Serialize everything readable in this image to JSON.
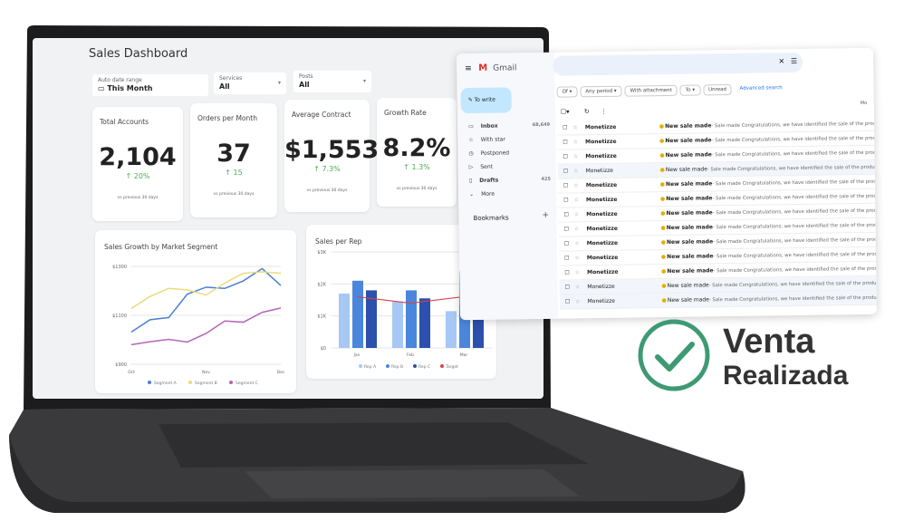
{
  "dashboard": {
    "title": "Sales Dashboard",
    "filters": [
      {
        "label": "Auto date range",
        "value": "This Month",
        "icon": "calendar-icon"
      },
      {
        "label": "Services",
        "value": "All"
      },
      {
        "label": "Posts",
        "value": "All"
      }
    ],
    "kpis": [
      {
        "label": "Total Accounts",
        "value": "2,104",
        "delta": "↑ 20%",
        "sub": "vs previous 30 days"
      },
      {
        "label": "Orders per Month",
        "value": "37",
        "delta": "↑ 15",
        "sub": "vs previous 30 days"
      },
      {
        "label": "Average Contract",
        "value": "$1,553",
        "delta": "↑ 7.3%",
        "sub": "vs previous 30 days"
      },
      {
        "label": "Growth Rate",
        "value": "8.2%",
        "delta": "↑ 1.3%",
        "sub": "vs previous 30 days"
      }
    ]
  },
  "chart_data": [
    {
      "type": "line",
      "title": "Sales Growth by Market Segment",
      "x_ticks": [
        "Oct",
        "Nov",
        "Dec"
      ],
      "y_ticks": [
        "$900",
        "$1100",
        "$1300"
      ],
      "ylim": [
        900,
        1300
      ],
      "grid": true,
      "legend": "bottom",
      "series": [
        {
          "name": "Segment A",
          "color": "#4a7fd6",
          "values": [
            1032,
            1082,
            1091,
            1187,
            1215,
            1210,
            1241,
            1291,
            1222
          ]
        },
        {
          "name": "Segment B",
          "color": "#e8dd7a",
          "values": [
            1128,
            1177,
            1210,
            1204,
            1183,
            1232,
            1272,
            1278,
            1272
          ]
        },
        {
          "name": "Segment C",
          "color": "#b565b8",
          "values": [
            980,
            992,
            1002,
            991,
            1026,
            1077,
            1072,
            1112,
            1130
          ]
        }
      ]
    },
    {
      "type": "bar",
      "title": "Sales per Rep",
      "categories": [
        "Jan",
        "Feb",
        "Mar"
      ],
      "y_ticks": [
        "$0",
        "$1K",
        "$2K",
        "$3K"
      ],
      "ylim": [
        0,
        3000
      ],
      "grid": true,
      "legend": "bottom",
      "series": [
        {
          "name": "Rep A",
          "color": "#a7c8f5",
          "values": [
            1700,
            1450,
            1150
          ]
        },
        {
          "name": "Rep B",
          "color": "#4a86dc",
          "values": [
            2100,
            1800,
            2400
          ]
        },
        {
          "name": "Rep C",
          "color": "#2d4fae",
          "values": [
            1800,
            1550,
            2100
          ]
        },
        {
          "name": "Target",
          "color": "#d0454c",
          "type": "line",
          "values": [
            1600,
            1400,
            1600
          ]
        }
      ]
    }
  ],
  "gmail": {
    "app_name": "Gmail",
    "compose": "To write",
    "nav": [
      {
        "label": "Inbox",
        "count": "68,649",
        "icon": "inbox-icon"
      },
      {
        "label": "With star",
        "icon": "star-icon"
      },
      {
        "label": "Postponed",
        "icon": "clock-icon"
      },
      {
        "label": "Sent",
        "icon": "send-icon"
      },
      {
        "label": "Drafts",
        "count": "425",
        "icon": "draft-icon"
      },
      {
        "label": "More",
        "icon": "chevron-down-icon"
      }
    ],
    "bookmarks": "Bookmarks",
    "chips": [
      "Of ▾",
      "Any period ▾",
      "With attachment",
      "To ▾",
      "Unread"
    ],
    "advanced": "Advanced search",
    "more_label": "Mo",
    "emails": [
      {
        "sender": "Monetizze",
        "subject": "New sale made",
        "snippet": " - Sale made Congratulations, we have identified the sale of the product [PLR VIDE",
        "unread": true
      },
      {
        "sender": "Monetizze",
        "subject": "New sale made",
        "snippet": " - Sale made Congratulations, we have identified the sale of the product [PLR VIDE",
        "unread": true
      },
      {
        "sender": "Monetizze",
        "subject": "New sale made",
        "snippet": " - Sale made Congratulations, we have identified the sale of the product [PLR VIDE",
        "unread": true
      },
      {
        "sender": "Monetizze",
        "subject": "New sale made",
        "snippet": " - Sale made Congratulations, we have identified the sale of the product [PLR VIDE",
        "unread": false
      },
      {
        "sender": "Monetizze",
        "subject": "New sale made",
        "snippet": " - Sale made Congratulations, we have identified the sale of the product [PLR VIDE",
        "unread": true
      },
      {
        "sender": "Monetizze",
        "subject": "New sale made",
        "snippet": " - Sale made Congratulations, we have identified the sale of the product [PLR VIDE",
        "unread": true
      },
      {
        "sender": "Monetizze",
        "subject": "New sale made",
        "snippet": " - Sale made Congratulations, we have identified the sale of the product [PLR VIDE",
        "unread": true
      },
      {
        "sender": "Monetizze",
        "subject": "New sale made",
        "snippet": " - Sale made Congratulations, we have identified the sale of the product [PLR VIDE",
        "unread": true
      },
      {
        "sender": "Monetizze",
        "subject": "New sale made",
        "snippet": " - Sale made Congratulations, we have identified the sale of the product [PLR VIDE",
        "unread": true
      },
      {
        "sender": "Monetizze",
        "subject": "New sale made",
        "snippet": " - Sale made Congratulations, we have identified the sale of the product [PLR VIDE",
        "unread": true
      },
      {
        "sender": "Monetizze",
        "subject": "New sale made",
        "snippet": " - Sale made Congratulations, we have identified the sale of the product [PLR VIDE",
        "unread": true
      },
      {
        "sender": "Monetizze",
        "subject": "New sale made",
        "snippet": " - Sale made Congratulations, we have identified the sale of the product [PLR VIDE",
        "unread": false
      },
      {
        "sender": "Monetizze",
        "subject": "New sale made",
        "snippet": " - Sale made Congratulations, we have identified the sale of the product [PLR VIDE",
        "unread": false
      }
    ]
  },
  "badge": {
    "line1": "Venta",
    "line2": "Realizada",
    "color": "#3d9a73",
    "icon": "checkmark-circle-icon"
  }
}
